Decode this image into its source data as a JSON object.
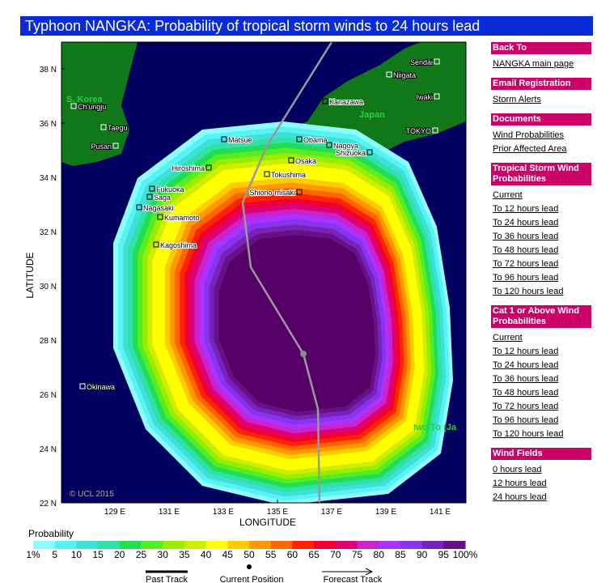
{
  "header": {
    "title": "Typhoon NANGKA: Probability of tropical storm winds to 24 hours lead"
  },
  "map": {
    "x_label": "LONGITUDE",
    "y_label": "LATITUDE",
    "lat_ticks": [
      "38 N",
      "36 N",
      "34 N",
      "32 N",
      "30 N",
      "28 N",
      "26 N",
      "24 N",
      "22 N"
    ],
    "lon_ticks": [
      "129 E",
      "131 E",
      "133 E",
      "135 E",
      "137 E",
      "139 E",
      "141 E"
    ],
    "places": [
      "S. Korea",
      "Ch'ungju",
      "Taegu",
      "Pusan",
      "Sendai",
      "Niigata",
      "Iwaki",
      "Kanazawa",
      "Japan",
      "TOKYO",
      "Matsue",
      "Obama",
      "Nagoya",
      "Shizuoka",
      "Osaka",
      "Hiroshima",
      "Tokushima",
      "Shiono-misaki",
      "Fukuoka",
      "Saga",
      "Nagasaki",
      "Kumamoto",
      "Kagoshima",
      "Okinawa",
      "Iwo To (Ja"
    ],
    "copyright": "© UCL 2015"
  },
  "legend": {
    "title": "Probability",
    "labels": [
      "1%",
      "5",
      "10",
      "15",
      "20",
      "25",
      "30",
      "35",
      "40",
      "45",
      "50",
      "55",
      "60",
      "65",
      "70",
      "75",
      "80",
      "85",
      "90",
      "95",
      "100%"
    ],
    "track": [
      "Past Track",
      "Current Position",
      "Forecast Track"
    ]
  },
  "sidebar": [
    {
      "heading": "Back To",
      "links": [
        "NANGKA main page"
      ]
    },
    {
      "heading": "Email Registration",
      "links": [
        "Storm Alerts"
      ]
    },
    {
      "heading": "Documents",
      "links": [
        "Wind Probabilities",
        "Prior Affected Area"
      ]
    },
    {
      "heading": "Tropical Storm Wind Probabilities",
      "links": [
        "Current",
        "To 12 hours lead",
        "To 24 hours lead",
        "To 36 hours lead",
        "To 48 hours lead",
        "To 72 hours lead",
        "To 96 hours lead",
        "To 120 hours lead"
      ]
    },
    {
      "heading": "Cat 1 or Above Wind Probabilities",
      "links": [
        "Current",
        "To 12 hours lead",
        "To 24 hours lead",
        "To 36 hours lead",
        "To 48 hours lead",
        "To 72 hours lead",
        "To 96 hours lead",
        "To 120 hours lead"
      ]
    },
    {
      "heading": "Wind Fields",
      "links": [
        "0 hours lead",
        "12 hours lead",
        "24 hours lead"
      ]
    }
  ]
}
